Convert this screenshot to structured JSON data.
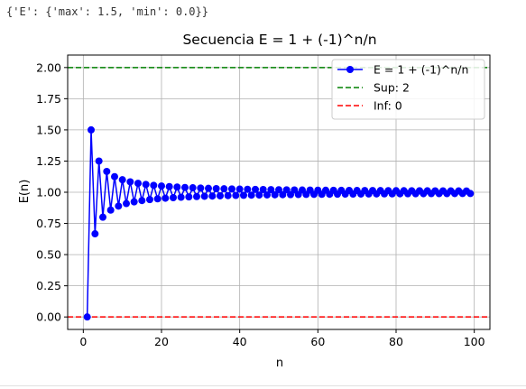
{
  "output": {
    "text": "{'E': {'max': 1.5, 'min': 0.0}}"
  },
  "chart_data": {
    "type": "line",
    "title": "Secuencia E = 1 + (-1)^n/n",
    "xlabel": "n",
    "ylabel": "E(n)",
    "xlim": [
      -4,
      104
    ],
    "ylim": [
      -0.1,
      2.1
    ],
    "xticks": [
      0,
      20,
      40,
      60,
      80,
      100
    ],
    "yticks": [
      0.0,
      0.25,
      0.5,
      0.75,
      1.0,
      1.25,
      1.5,
      1.75,
      2.0
    ],
    "ytick_labels": [
      "0.00",
      "0.25",
      "0.50",
      "0.75",
      "1.00",
      "1.25",
      "1.50",
      "1.75",
      "2.00"
    ],
    "grid": true,
    "legend_position": "upper-right",
    "series": [
      {
        "name": "E = 1 + (-1)^n/n",
        "color": "#0000ff",
        "marker": "circle",
        "x_start": 1,
        "x_end": 99,
        "formula": "1 + (-1)^n / n"
      }
    ],
    "hlines": [
      {
        "name": "Sup: 2",
        "y": 2,
        "color": "#008000",
        "style": "dashed"
      },
      {
        "name": "Inf: 0",
        "y": 0,
        "color": "#ff0000",
        "style": "dashed"
      }
    ]
  }
}
